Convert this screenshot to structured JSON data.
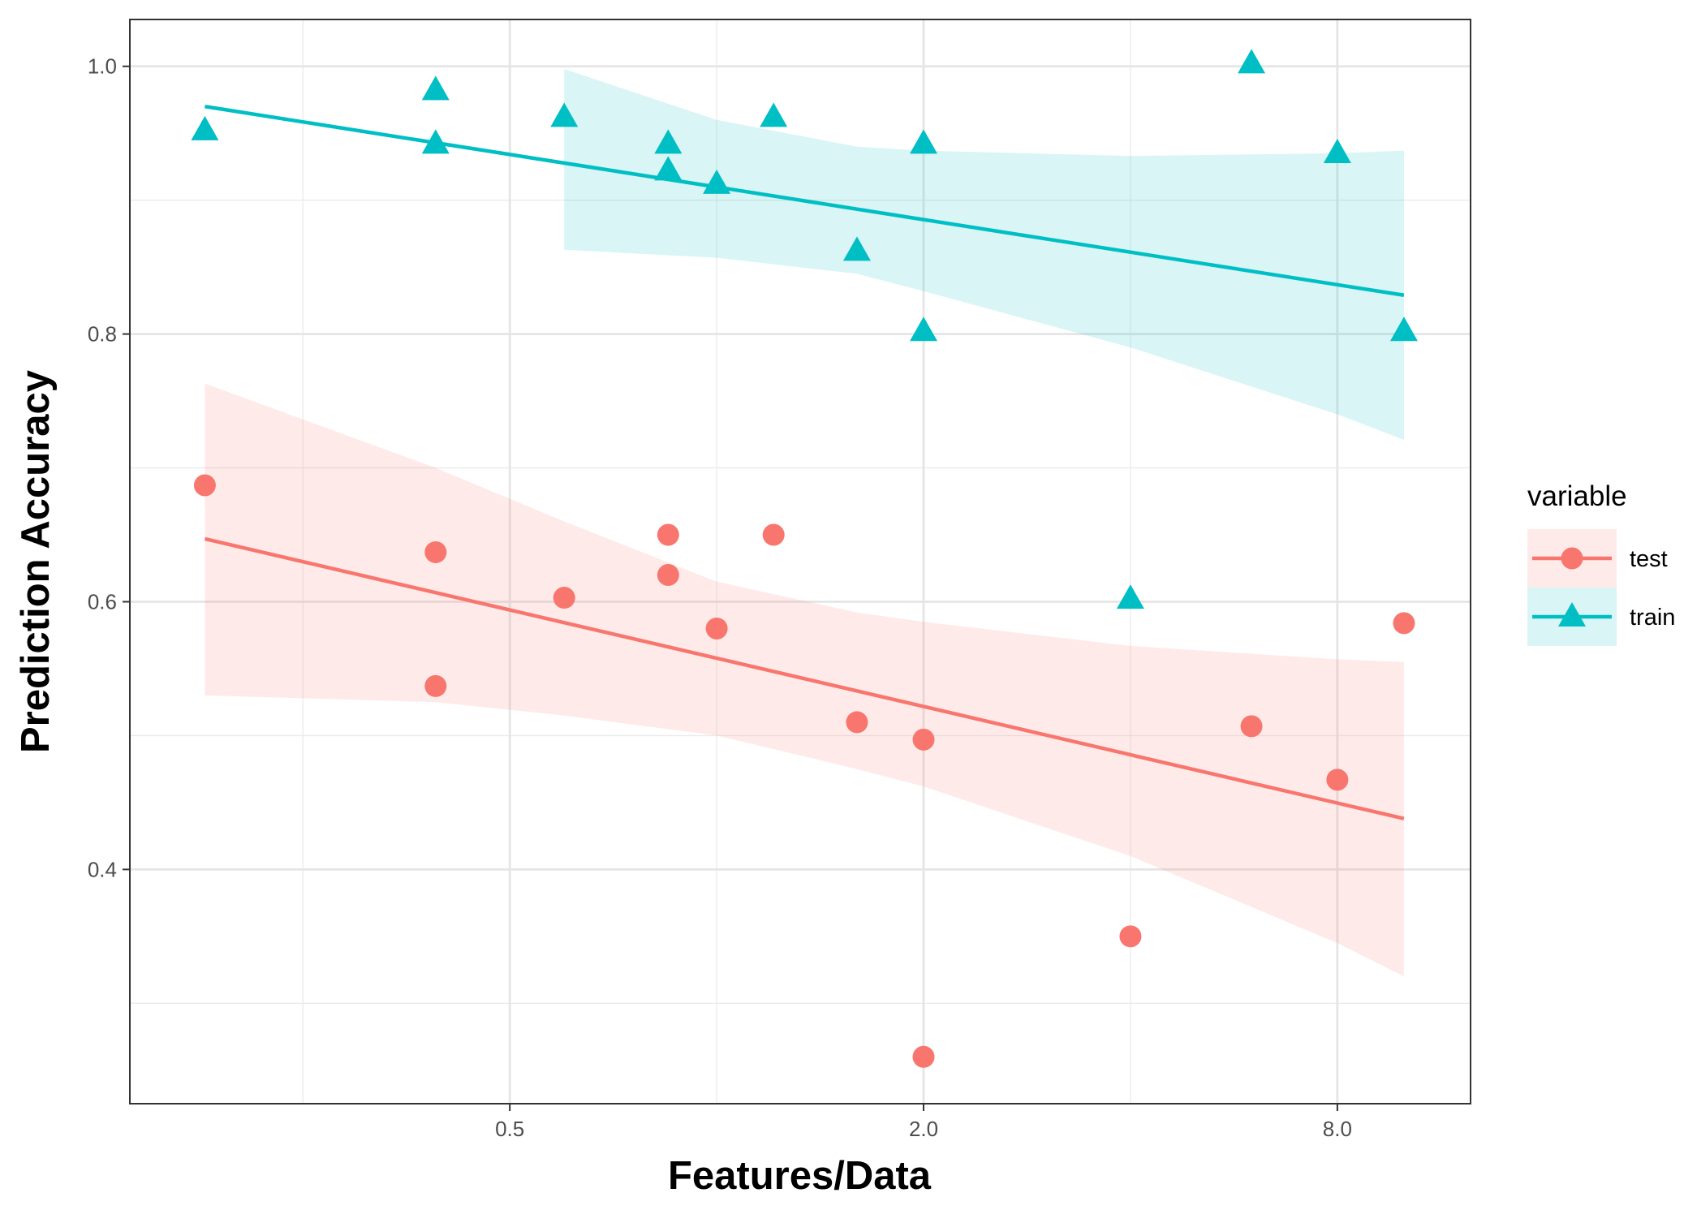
{
  "chart_data": {
    "type": "scatter",
    "xlabel": "Features/Data",
    "ylabel": "Prediction Accuracy",
    "x_scale": "log2",
    "xlim": [
      0.14,
      12.5
    ],
    "ylim": [
      0.225,
      1.035
    ],
    "x_ticks": [
      {
        "value": 0.5,
        "label": "0.5"
      },
      {
        "value": 2.0,
        "label": "2.0"
      },
      {
        "value": 8.0,
        "label": "8.0"
      }
    ],
    "y_ticks": [
      {
        "value": 0.4,
        "label": "0.4"
      },
      {
        "value": 0.6,
        "label": "0.6"
      },
      {
        "value": 0.8,
        "label": "0.8"
      },
      {
        "value": 1.0,
        "label": "1.0"
      }
    ],
    "grid": true,
    "legend": {
      "title": "variable",
      "position": "right"
    },
    "series": [
      {
        "name": "test",
        "marker": "circle",
        "color": "#F8766D",
        "band_color": "#F8766D",
        "points": [
          {
            "x": 0.18,
            "y": 0.687
          },
          {
            "x": 0.39,
            "y": 0.637
          },
          {
            "x": 0.39,
            "y": 0.537
          },
          {
            "x": 0.6,
            "y": 0.603
          },
          {
            "x": 0.85,
            "y": 0.65
          },
          {
            "x": 0.85,
            "y": 0.62
          },
          {
            "x": 1.0,
            "y": 0.58
          },
          {
            "x": 1.21,
            "y": 0.65
          },
          {
            "x": 1.6,
            "y": 0.51
          },
          {
            "x": 2.0,
            "y": 0.497
          },
          {
            "x": 2.0,
            "y": 0.26
          },
          {
            "x": 4.0,
            "y": 0.35
          },
          {
            "x": 6.0,
            "y": 0.507
          },
          {
            "x": 8.0,
            "y": 0.467
          },
          {
            "x": 10.0,
            "y": 0.584
          }
        ],
        "fit": [
          {
            "x": 0.18,
            "y": 0.647
          },
          {
            "x": 10.0,
            "y": 0.438
          }
        ],
        "band": [
          {
            "x": 0.18,
            "lo": 0.53,
            "hi": 0.763
          },
          {
            "x": 0.39,
            "lo": 0.525,
            "hi": 0.7
          },
          {
            "x": 0.6,
            "lo": 0.515,
            "hi": 0.66
          },
          {
            "x": 1.0,
            "lo": 0.5,
            "hi": 0.615
          },
          {
            "x": 1.6,
            "lo": 0.475,
            "hi": 0.592
          },
          {
            "x": 2.0,
            "lo": 0.462,
            "hi": 0.585
          },
          {
            "x": 4.0,
            "lo": 0.41,
            "hi": 0.567
          },
          {
            "x": 8.0,
            "lo": 0.345,
            "hi": 0.557
          },
          {
            "x": 10.0,
            "lo": 0.32,
            "hi": 0.555
          }
        ]
      },
      {
        "name": "train",
        "marker": "triangle",
        "color": "#00BFC4",
        "band_color": "#00BFC4",
        "points": [
          {
            "x": 0.18,
            "y": 0.952
          },
          {
            "x": 0.39,
            "y": 0.982
          },
          {
            "x": 0.39,
            "y": 0.942
          },
          {
            "x": 0.6,
            "y": 0.962
          },
          {
            "x": 0.85,
            "y": 0.942
          },
          {
            "x": 0.85,
            "y": 0.922
          },
          {
            "x": 1.0,
            "y": 0.912
          },
          {
            "x": 1.21,
            "y": 0.962
          },
          {
            "x": 1.6,
            "y": 0.862
          },
          {
            "x": 2.0,
            "y": 0.942
          },
          {
            "x": 2.0,
            "y": 0.802
          },
          {
            "x": 4.0,
            "y": 0.602
          },
          {
            "x": 6.0,
            "y": 1.002
          },
          {
            "x": 8.0,
            "y": 0.935
          },
          {
            "x": 10.0,
            "y": 0.802
          }
        ],
        "fit": [
          {
            "x": 0.18,
            "y": 0.97
          },
          {
            "x": 10.0,
            "y": 0.829
          }
        ],
        "band": [
          {
            "x": 0.6,
            "lo": 0.863,
            "hi": 0.998
          },
          {
            "x": 1.0,
            "lo": 0.857,
            "hi": 0.96
          },
          {
            "x": 1.6,
            "lo": 0.845,
            "hi": 0.94
          },
          {
            "x": 2.0,
            "lo": 0.832,
            "hi": 0.937
          },
          {
            "x": 4.0,
            "lo": 0.79,
            "hi": 0.933
          },
          {
            "x": 8.0,
            "lo": 0.74,
            "hi": 0.935
          },
          {
            "x": 10.0,
            "lo": 0.721,
            "hi": 0.937
          }
        ]
      }
    ]
  }
}
